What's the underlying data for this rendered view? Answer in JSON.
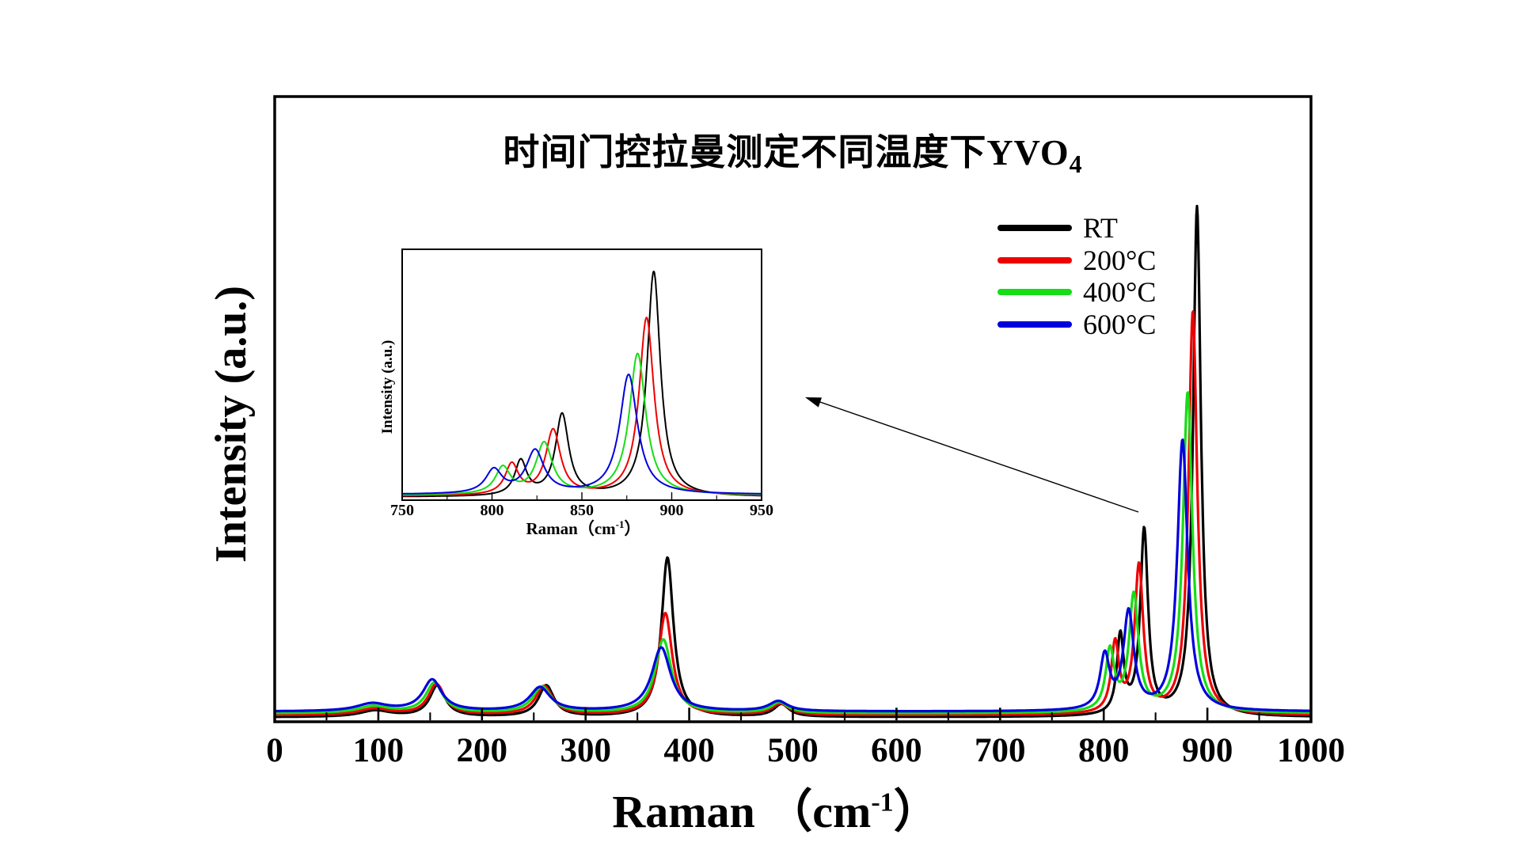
{
  "figure": {
    "title_main": "时间门控拉曼测定不同温度下YVO",
    "title_sub": "4",
    "x_axis": {
      "label_pre": "Raman （cm",
      "label_sup": "-1",
      "label_post": "）",
      "tick_labels": [
        "0",
        "100",
        "200",
        "300",
        "400",
        "500",
        "600",
        "700",
        "800",
        "900",
        "1000"
      ]
    },
    "y_axis": {
      "label": "Intensity (a.u.)"
    }
  },
  "inset": {
    "x_axis": {
      "label_pre": "Raman（cm",
      "label_sup": "-1",
      "label_post": "）",
      "tick_labels": [
        "750",
        "800",
        "850",
        "900",
        "950"
      ]
    },
    "y_axis": {
      "label": "Intensity (a.u.)"
    }
  },
  "legend": {
    "items": [
      {
        "label": "RT",
        "color": "#000000"
      },
      {
        "label": "200°C",
        "color": "#ee0000"
      },
      {
        "label": "400°C",
        "color": "#16dd16"
      },
      {
        "label": "600°C",
        "color": "#0000dd"
      }
    ]
  },
  "chart_data": {
    "type": "line",
    "title": "时间门控拉曼测定不同温度下YVO4 (Time-gated Raman of YVO4 at different temperatures)",
    "xlabel": "Raman （cm⁻¹）",
    "ylabel": "Intensity (a.u.)",
    "xlim": [
      0,
      1000
    ],
    "xtick_step": 100,
    "xtick_minor_step": 50,
    "y_axis_note": "arbitrary units, no y ticks",
    "legend_position": "upper right, no frame",
    "grid": false,
    "peak_model": "lorentzian: h*w^2/((x-c)^2+w^2); height h = fraction of main panel height; c, w in cm-1",
    "inset": {
      "xlim": [
        750,
        950
      ],
      "xtick_step": 50,
      "xtick_minor_step": 25,
      "xlabel": "Raman（cm⁻¹）",
      "ylabel": "Intensity (a.u.)",
      "y_scale_vs_main": 1.1,
      "description": "zoomed view of the 750-950 cm-1 region, linked by arrow"
    },
    "series": [
      {
        "name": "RT",
        "color": "#000000",
        "baseline": 0.004,
        "peaks": [
          {
            "center": 97,
            "height": 0.01,
            "hwhm": 18
          },
          {
            "center": 157,
            "height": 0.05,
            "hwhm": 9
          },
          {
            "center": 262,
            "height": 0.05,
            "hwhm": 9
          },
          {
            "center": 379,
            "height": 0.255,
            "hwhm": 7
          },
          {
            "center": 489,
            "height": 0.02,
            "hwhm": 9
          },
          {
            "center": 816,
            "height": 0.125,
            "hwhm": 4
          },
          {
            "center": 839,
            "height": 0.295,
            "hwhm": 4.5
          },
          {
            "center": 890,
            "height": 0.815,
            "hwhm": 4.5
          }
        ]
      },
      {
        "name": "200°C",
        "color": "#ee0000",
        "baseline": 0.007,
        "peaks": [
          {
            "center": 96,
            "height": 0.01,
            "hwhm": 18
          },
          {
            "center": 156,
            "height": 0.049,
            "hwhm": 9.5
          },
          {
            "center": 260,
            "height": 0.046,
            "hwhm": 10
          },
          {
            "center": 377,
            "height": 0.163,
            "hwhm": 8
          },
          {
            "center": 488,
            "height": 0.018,
            "hwhm": 10
          },
          {
            "center": 811,
            "height": 0.11,
            "hwhm": 4.5
          },
          {
            "center": 834,
            "height": 0.235,
            "hwhm": 5
          },
          {
            "center": 886,
            "height": 0.645,
            "hwhm": 5
          }
        ]
      },
      {
        "name": "400°C",
        "color": "#16dd16",
        "baseline": 0.01,
        "peaks": [
          {
            "center": 95,
            "height": 0.011,
            "hwhm": 18
          },
          {
            "center": 154,
            "height": 0.048,
            "hwhm": 10
          },
          {
            "center": 258,
            "height": 0.042,
            "hwhm": 11
          },
          {
            "center": 375,
            "height": 0.118,
            "hwhm": 9.5
          },
          {
            "center": 487,
            "height": 0.017,
            "hwhm": 10
          },
          {
            "center": 806,
            "height": 0.096,
            "hwhm": 5
          },
          {
            "center": 829,
            "height": 0.185,
            "hwhm": 5.5
          },
          {
            "center": 881,
            "height": 0.512,
            "hwhm": 5.5
          }
        ]
      },
      {
        "name": "600°C",
        "color": "#0000dd",
        "baseline": 0.013,
        "peaks": [
          {
            "center": 94,
            "height": 0.012,
            "hwhm": 18
          },
          {
            "center": 152,
            "height": 0.05,
            "hwhm": 11
          },
          {
            "center": 256,
            "height": 0.038,
            "hwhm": 12
          },
          {
            "center": 373,
            "height": 0.102,
            "hwhm": 11
          },
          {
            "center": 486,
            "height": 0.016,
            "hwhm": 11
          },
          {
            "center": 801,
            "height": 0.085,
            "hwhm": 5.5
          },
          {
            "center": 824,
            "height": 0.155,
            "hwhm": 6
          },
          {
            "center": 876,
            "height": 0.433,
            "hwhm": 6
          }
        ]
      }
    ]
  }
}
